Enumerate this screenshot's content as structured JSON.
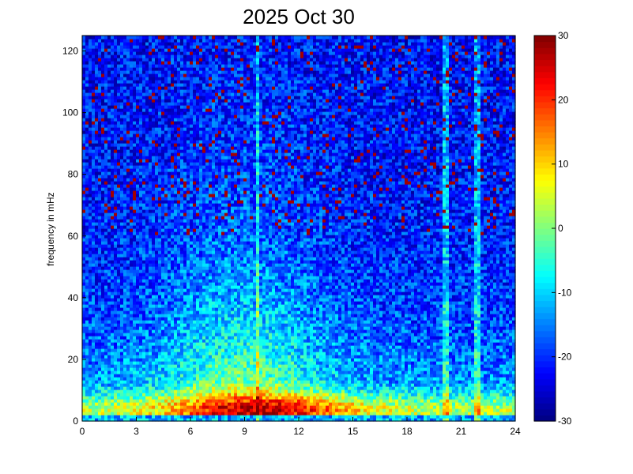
{
  "chart_data": {
    "type": "heatmap",
    "title": "2025 Oct 30",
    "xlabel": "",
    "ylabel": "frequency in mHz",
    "x_range": [
      0,
      24
    ],
    "y_range": [
      0,
      125
    ],
    "x_ticks": [
      0,
      3,
      6,
      9,
      12,
      15,
      18,
      21,
      24
    ],
    "y_ticks": [
      0,
      20,
      40,
      60,
      80,
      100,
      120
    ],
    "colorbar": {
      "range": [
        -30,
        30
      ],
      "ticks": [
        30,
        20,
        10,
        0,
        -10,
        -20,
        -30
      ],
      "colormap": "jet"
    },
    "grid": false,
    "features": {
      "low_frequency_band_hours": [
        0,
        24
      ],
      "low_frequency_peak_value": 30,
      "broadband_hours": [
        5,
        13
      ],
      "vertical_streaks_hours": [
        9.7,
        20.2,
        21.9
      ],
      "background_value_high_freq": -22
    }
  }
}
